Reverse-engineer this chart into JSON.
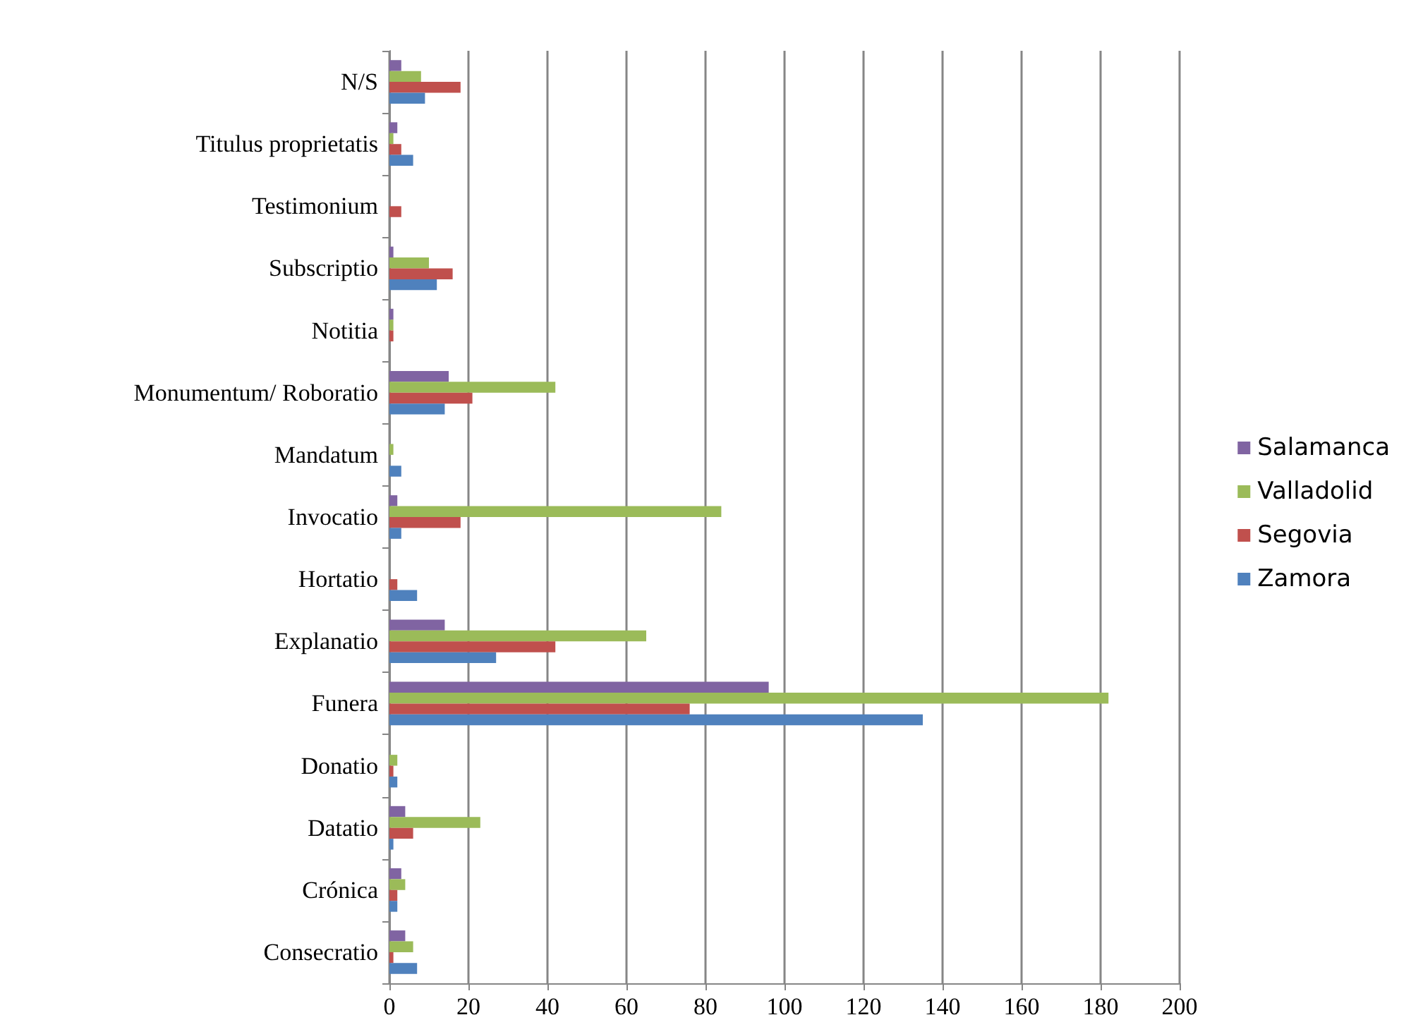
{
  "chart_data": {
    "type": "bar",
    "orientation": "horizontal",
    "categories": [
      "N/S",
      "Titulus proprietatis",
      "Testimonium",
      "Subscriptio",
      "Notitia",
      "Monumentum/ Roboratio",
      "Mandatum",
      "Invocatio",
      "Hortatio",
      "Explanatio",
      "Funera",
      "Donatio",
      "Datatio",
      "Crónica",
      "Consecratio"
    ],
    "series": [
      {
        "name": "Salamanca",
        "color": "#8064a2",
        "values": [
          3,
          2,
          0,
          1,
          1,
          15,
          0,
          2,
          0,
          14,
          96,
          0,
          4,
          3,
          4
        ]
      },
      {
        "name": "Valladolid",
        "color": "#9bbb59",
        "values": [
          8,
          1,
          0,
          10,
          1,
          42,
          1,
          84,
          0,
          65,
          182,
          2,
          23,
          4,
          6
        ]
      },
      {
        "name": "Segovia",
        "color": "#c0504d",
        "values": [
          18,
          3,
          3,
          16,
          1,
          21,
          0,
          18,
          2,
          42,
          76,
          1,
          6,
          2,
          1
        ]
      },
      {
        "name": "Zamora",
        "color": "#4f81bd",
        "values": [
          9,
          6,
          0,
          12,
          0,
          14,
          3,
          3,
          7,
          27,
          135,
          2,
          1,
          2,
          7
        ]
      }
    ],
    "xlim": [
      0,
      200
    ],
    "xticks": [
      0,
      20,
      40,
      60,
      80,
      100,
      120,
      140,
      160,
      180,
      200
    ],
    "grid": "x",
    "legend": "right"
  }
}
